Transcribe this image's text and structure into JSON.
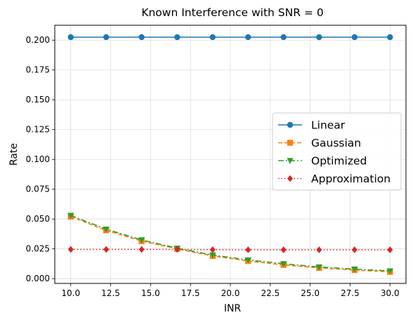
{
  "chart_data": {
    "type": "line",
    "title": "Known Interference with SNR = 0",
    "xlabel": "INR",
    "ylabel": "Rate",
    "xlim": [
      9.0,
      31.0
    ],
    "ylim": [
      -0.004,
      0.2125
    ],
    "xticks": [
      10.0,
      12.5,
      15.0,
      17.5,
      20.0,
      22.5,
      25.0,
      27.5,
      30.0
    ],
    "xtick_labels": [
      "10.0",
      "12.5",
      "15.0",
      "17.5",
      "20.0",
      "22.5",
      "25.0",
      "27.5",
      "30.0"
    ],
    "yticks": [
      0.0,
      0.025,
      0.05,
      0.075,
      0.1,
      0.125,
      0.15,
      0.175,
      0.2
    ],
    "ytick_labels": [
      "0.000",
      "0.025",
      "0.050",
      "0.075",
      "0.100",
      "0.125",
      "0.150",
      "0.175",
      "0.200"
    ],
    "grid": true,
    "legend_position": "center-right",
    "x": [
      10.0,
      12.22,
      14.44,
      16.67,
      18.89,
      21.11,
      23.33,
      25.56,
      27.78,
      30.0
    ],
    "series": [
      {
        "name": "Linear",
        "values": [
          0.2025,
          0.2025,
          0.2025,
          0.2025,
          0.2025,
          0.2025,
          0.2025,
          0.2025,
          0.2025,
          0.2025
        ],
        "color": "#1f77b4",
        "line_style": "solid",
        "marker": "circle"
      },
      {
        "name": "Gaussian",
        "values": [
          0.052,
          0.0405,
          0.0315,
          0.025,
          0.019,
          0.0148,
          0.0115,
          0.009,
          0.0072,
          0.0057
        ],
        "color": "#ff7f0e",
        "line_style": "dashed",
        "marker": "square"
      },
      {
        "name": "Optimized",
        "values": [
          0.053,
          0.0415,
          0.0325,
          0.0255,
          0.0198,
          0.0157,
          0.0125,
          0.0098,
          0.008,
          0.0065
        ],
        "color": "#2ca02c",
        "line_style": "dashdot",
        "marker": "triangle-down"
      },
      {
        "name": "Approximation",
        "values": [
          0.0245,
          0.0245,
          0.0245,
          0.0245,
          0.0243,
          0.0242,
          0.0242,
          0.0242,
          0.0242,
          0.0242
        ],
        "color": "#d62728",
        "line_style": "dotted",
        "marker": "diamond"
      }
    ]
  }
}
